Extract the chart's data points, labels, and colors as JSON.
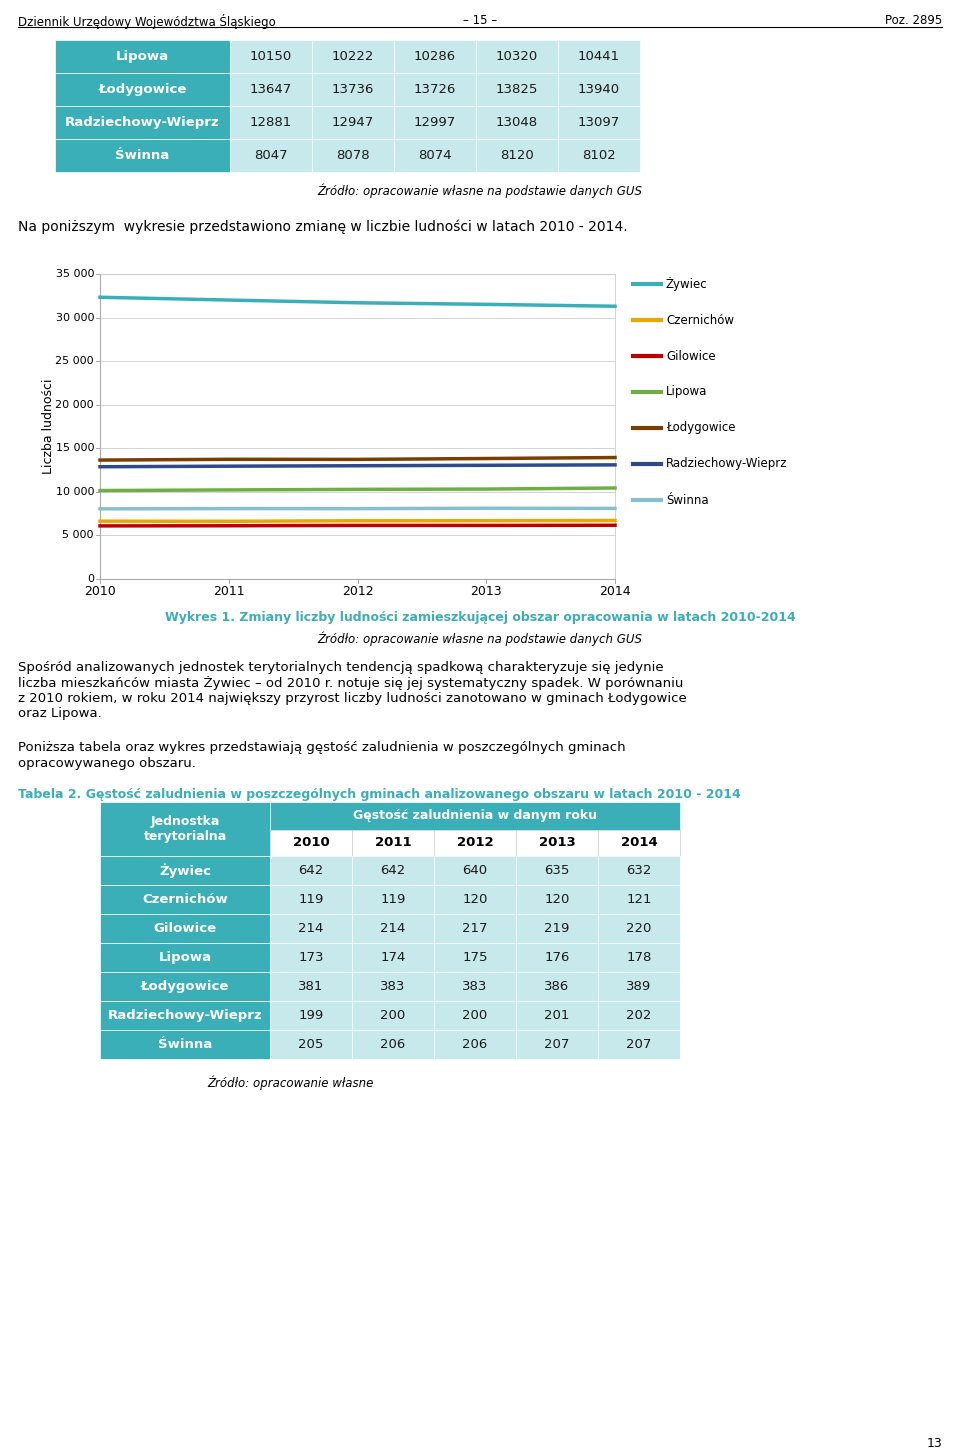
{
  "header_left": "Dziennik Urzędowy Województwa Śląskiego",
  "header_center": "– 15 –",
  "header_right": "Poz. 2895",
  "page_number": "13",
  "table1_header_color": "#3AAFB8",
  "table1_row_light": "#C8E9EC",
  "table1_rows": [
    [
      "Lipowa",
      "10150",
      "10222",
      "10286",
      "10320",
      "10441"
    ],
    [
      "Łodygowice",
      "13647",
      "13736",
      "13726",
      "13825",
      "13940"
    ],
    [
      "Radziechowy-Wieprz",
      "12881",
      "12947",
      "12997",
      "13048",
      "13097"
    ],
    [
      "Świnna",
      "8047",
      "8078",
      "8074",
      "8120",
      "8102"
    ]
  ],
  "source1": "Źródło: opracowanie własne na podstawie danych GUS",
  "intro_text": "Na poniższym  wykresie przedstawiono zmianę w liczbie ludności w latach 2010 - 2014.",
  "chart_ylabel": "Liczba ludności",
  "chart_years": [
    2010,
    2011,
    2012,
    2013,
    2014
  ],
  "chart_ylim": [
    0,
    35000
  ],
  "chart_yticks": [
    0,
    5000,
    10000,
    15000,
    20000,
    25000,
    30000,
    35000
  ],
  "series_order": [
    "Żywiec",
    "Czernichów",
    "Gilowice",
    "Lipowa",
    "Łodygowice",
    "Radziechowy-Wieprz",
    "Świnna"
  ],
  "series": {
    "Żywiec": {
      "data": [
        32332,
        32011,
        31698,
        31516,
        31300
      ],
      "color": "#3AAFB8"
    },
    "Czernichów": {
      "data": [
        6633,
        6622,
        6680,
        6691,
        6713
      ],
      "color": "#E8A800"
    },
    "Gilowice": {
      "data": [
        6095,
        6110,
        6148,
        6148,
        6169
      ],
      "color": "#C00000"
    },
    "Lipowa": {
      "data": [
        10150,
        10222,
        10286,
        10320,
        10441
      ],
      "color": "#70AD47"
    },
    "Łodygowice": {
      "data": [
        13647,
        13736,
        13726,
        13825,
        13940
      ],
      "color": "#7B3D00"
    },
    "Radziechowy-Wieprz": {
      "data": [
        12881,
        12947,
        12997,
        13048,
        13097
      ],
      "color": "#2E4A8A"
    },
    "Świnna": {
      "data": [
        8047,
        8078,
        8074,
        8120,
        8102
      ],
      "color": "#87C0CC"
    }
  },
  "chart_caption": "Wykres 1. Zmiany liczby ludności zamieszkującej obszar opracowania w latach 2010-2014",
  "chart_source": "Źródło: opracowanie własne na podstawie danych GUS",
  "chart_caption_color": "#3AAFB8",
  "body1_lines": [
    "Spośród analizowanych jednostek terytorialnych tendencją spadkową charakteryzuje się jedynie",
    "liczba mieszkańców miasta Żywiec – od 2010 r. notuje się jej systematyczny spadek. W porównaniu",
    "z 2010 rokiem, w roku 2014 największy przyrost liczby ludności zanotowano w gminach Łodygowice",
    "oraz Lipowa."
  ],
  "body2_lines": [
    "Poniższa tabela oraz wykres przedstawiają gęstość zaludnienia w poszczególnych gminach",
    "opracowywanego obszaru."
  ],
  "table2_title": "Tabela 2. Gęstość zaludnienia w poszczególnych gminach analizowanego obszaru w latach 2010 - 2014",
  "table2_title_color": "#3AAFB8",
  "table2_header_color": "#3AAFB8",
  "table2_row_light": "#C8E9EC",
  "table2_data_header": "Gęstość zaludnienia w danym roku",
  "table2_year_cols": [
    "2010",
    "2011",
    "2012",
    "2013",
    "2014"
  ],
  "table2_rows": [
    [
      "Żywiec",
      "642",
      "642",
      "640",
      "635",
      "632"
    ],
    [
      "Czernichów",
      "119",
      "119",
      "120",
      "120",
      "121"
    ],
    [
      "Gilowice",
      "214",
      "214",
      "217",
      "219",
      "220"
    ],
    [
      "Lipowa",
      "173",
      "174",
      "175",
      "176",
      "178"
    ],
    [
      "Łodygowice",
      "381",
      "383",
      "383",
      "386",
      "389"
    ],
    [
      "Radziechowy-Wieprz",
      "199",
      "200",
      "200",
      "201",
      "202"
    ],
    [
      "Świnna",
      "205",
      "206",
      "206",
      "207",
      "207"
    ]
  ],
  "source2": "Źródło: opracowanie własne",
  "bg_color": "#FFFFFF"
}
